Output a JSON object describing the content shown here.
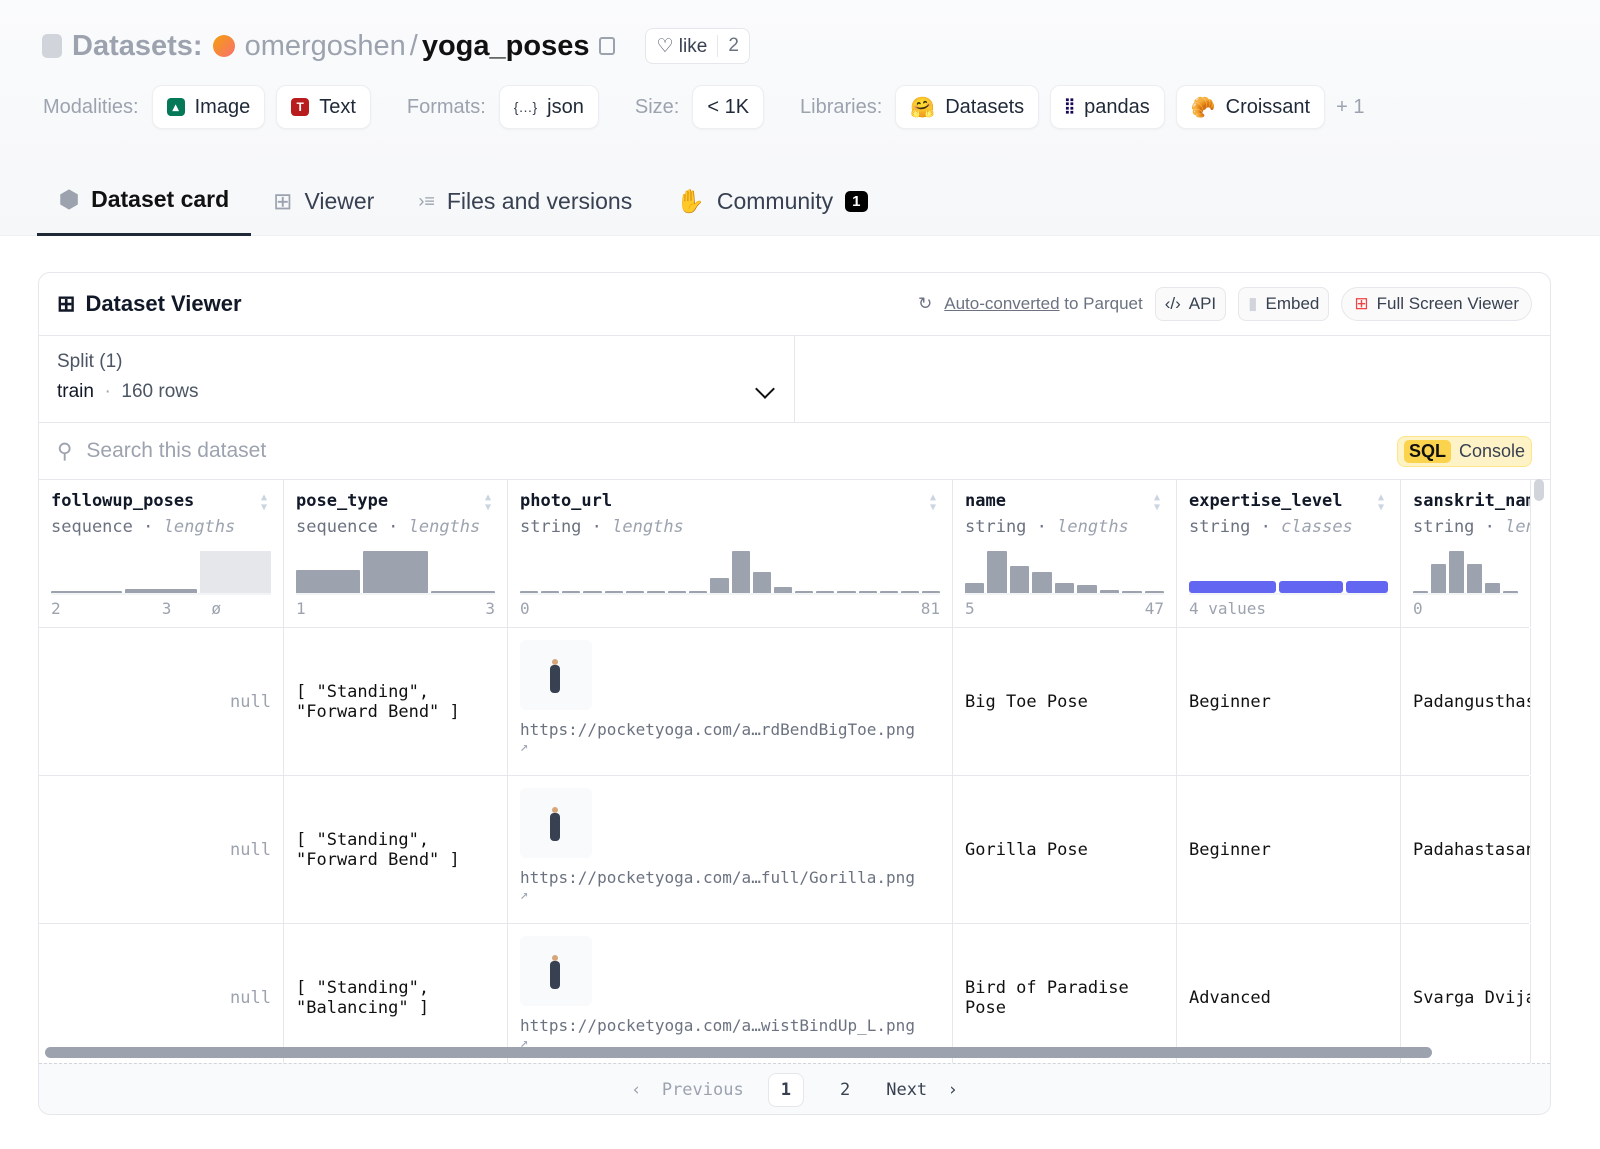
{
  "header": {
    "prefix": "Datasets:",
    "owner": "omergoshen",
    "separator": "/",
    "repo": "yoga_poses",
    "like_label": "like",
    "like_count": "2"
  },
  "tags": {
    "modalities_label": "Modalities:",
    "modalities": [
      "Image",
      "Text"
    ],
    "formats_label": "Formats:",
    "formats": [
      "json"
    ],
    "size_label": "Size:",
    "size": "< 1K",
    "libraries_label": "Libraries:",
    "libraries": [
      "Datasets",
      "pandas",
      "Croissant"
    ],
    "more": "+ 1"
  },
  "tabs": [
    {
      "label": "Dataset card",
      "active": true
    },
    {
      "label": "Viewer"
    },
    {
      "label": "Files and versions"
    },
    {
      "label": "Community",
      "badge": "1"
    }
  ],
  "viewer": {
    "title": "Dataset Viewer",
    "auto_link": "Auto-converted",
    "auto_rest": " to Parquet",
    "api": "API",
    "embed": "Embed",
    "fullscreen": "Full Screen Viewer",
    "split_label": "Split (1)",
    "split_value": "train",
    "rows": "160 rows",
    "search_placeholder": "Search this dataset",
    "sql": "SQL",
    "console": "Console"
  },
  "columns": [
    {
      "name": "followup_poses",
      "type": "sequence",
      "stat": "lengths",
      "hist": [
        0.03,
        0.1
      ],
      "null_fraction_bar": 1,
      "min": "2",
      "max": "3",
      "null": "ø"
    },
    {
      "name": "pose_type",
      "type": "sequence",
      "stat": "lengths",
      "hist": [
        0.55,
        1,
        0.03
      ],
      "min": "1",
      "max": "3"
    },
    {
      "name": "photo_url",
      "type": "string",
      "stat": "lengths",
      "hist": [
        0.04,
        0,
        0,
        0,
        0,
        0,
        0,
        0,
        0,
        0.35,
        1,
        0.5,
        0.15,
        0.04,
        0,
        0,
        0,
        0,
        0,
        0
      ],
      "min": "0",
      "max": "81"
    },
    {
      "name": "name",
      "type": "string",
      "stat": "lengths",
      "hist": [
        0.25,
        1,
        0.65,
        0.5,
        0.25,
        0.2,
        0.08,
        0.03,
        0.03
      ],
      "min": "5",
      "max": "47"
    },
    {
      "name": "expertise_level",
      "type": "string",
      "stat": "classes",
      "classes": [
        0.45,
        0.33,
        0.22
      ],
      "summary": "4 values"
    },
    {
      "name": "sanskrit_name",
      "type": "string",
      "stat": "lengths",
      "hist": [
        0.03,
        0.7,
        1,
        0.7,
        0.25,
        0.05
      ],
      "min": "0"
    }
  ],
  "rows": [
    {
      "followup_poses": "null",
      "pose_type": "[ \"Standing\", \"Forward Bend\" ]",
      "photo_url": "https://pocketyoga.com/a…rdBendBigToe.png",
      "name": "Big Toe Pose",
      "expertise_level": "Beginner",
      "sanskrit_name": "Padangusthasana"
    },
    {
      "followup_poses": "null",
      "pose_type": "[ \"Standing\", \"Forward Bend\" ]",
      "photo_url": "https://pocketyoga.com/a…full/Gorilla.png",
      "name": "Gorilla Pose",
      "expertise_level": "Beginner",
      "sanskrit_name": "Padahastasana"
    },
    {
      "followup_poses": "null",
      "pose_type": "[ \"Standing\", \"Balancing\" ]",
      "photo_url": "https://pocketyoga.com/a…wistBindUp_L.png",
      "name": "Bird of Paradise Pose",
      "expertise_level": "Advanced",
      "sanskrit_name": "Svarga Dvijasana"
    }
  ],
  "pager": {
    "previous": "Previous",
    "pages": [
      "1",
      "2"
    ],
    "current": "1",
    "next": "Next"
  },
  "colors": {
    "accent_bar": "#6366f1",
    "hist": "#9ca3af",
    "sql_bg": "#fef3c7"
  }
}
